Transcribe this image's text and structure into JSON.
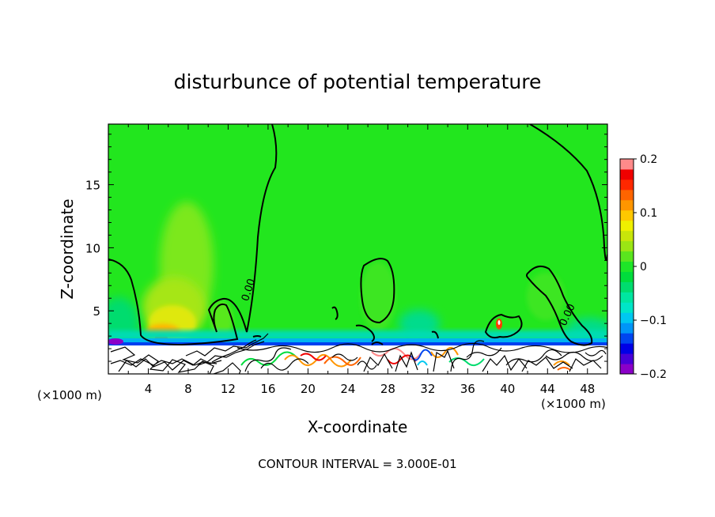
{
  "chart_data": {
    "type": "heatmap",
    "title": "disturbunce of potential temperature",
    "xlabel": "X-coordinate",
    "ylabel": "Z-coordinate",
    "x_unit_left": "(×1000 m)",
    "x_unit_right": "(×1000 m)",
    "x_ticks": [
      "4",
      "8",
      "12",
      "16",
      "20",
      "24",
      "28",
      "32",
      "36",
      "40",
      "44",
      "48"
    ],
    "x_tick_values": [
      4,
      8,
      12,
      16,
      20,
      24,
      28,
      32,
      36,
      40,
      44,
      48
    ],
    "y_ticks": [
      "5",
      "10",
      "15"
    ],
    "y_tick_values": [
      5,
      10,
      15
    ],
    "xlim": [
      0,
      50
    ],
    "ylim": [
      0,
      19.8
    ],
    "contour_labels": [
      {
        "text": "0.00",
        "x": 14.2,
        "y": 6.6
      },
      {
        "text": "0.00",
        "x": 46.2,
        "y": 4.5
      }
    ],
    "colorbar": {
      "ticks": [
        "0.2",
        "0.1",
        "0",
        "−0.1",
        "−0.2"
      ],
      "tick_values": [
        0.2,
        0.1,
        0,
        -0.1,
        -0.2
      ],
      "vmin": -0.2,
      "vmax": 0.2,
      "colors": [
        "#8a00c8",
        "#4800d8",
        "#0000e6",
        "#0046f0",
        "#0096f8",
        "#00c8f0",
        "#00e6c8",
        "#00e6a0",
        "#00dc6e",
        "#00dc3c",
        "#1ee628",
        "#5ae61e",
        "#9be614",
        "#c8e60a",
        "#f0f000",
        "#ffc800",
        "#ff9600",
        "#ff6400",
        "#ff2800",
        "#f00000",
        "#ff8a8a"
      ]
    },
    "footer": "CONTOUR INTERVAL = 3.000E-01"
  },
  "colors": {
    "background_field": "#22e61e"
  }
}
